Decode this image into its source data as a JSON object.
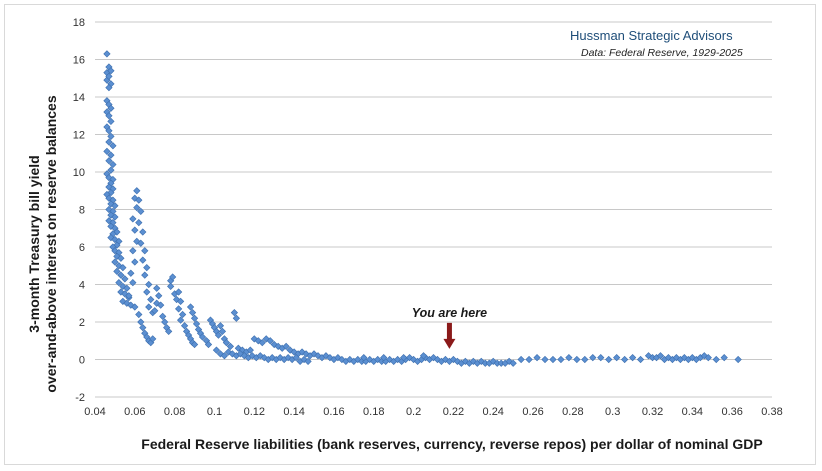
{
  "chart_data": {
    "type": "scatter",
    "title": "",
    "source": {
      "title": "Hussman Strategic Advisors",
      "subtitle": "Data: Federal Reserve, 1929-2025"
    },
    "xlabel": "Federal Reserve liabilities (bank reserves, currency, reverse repos) per dollar of nominal GDP",
    "ylabel_line1": "3-month Treasury bill yield",
    "ylabel_line2": "over-and-above interest on reserve balances",
    "xlim": [
      0.04,
      0.38
    ],
    "ylim": [
      -2,
      18
    ],
    "x_ticks": [
      "0.04",
      "0.06",
      "0.08",
      "0.1",
      "0.12",
      "0.14",
      "0.16",
      "0.18",
      "0.2",
      "0.22",
      "0.24",
      "0.26",
      "0.28",
      "0.3",
      "0.32",
      "0.34",
      "0.36",
      "0.38"
    ],
    "y_ticks": [
      "-2",
      "0",
      "2",
      "4",
      "6",
      "8",
      "10",
      "12",
      "14",
      "16",
      "18"
    ],
    "grid": "horizontal",
    "marker_color": "#5b8fd1",
    "annotation": {
      "text": "You are here",
      "x": 0.218,
      "y": 0.3,
      "arrow_color": "#8b1a1a"
    },
    "points": [
      [
        0.046,
        16.3
      ],
      [
        0.047,
        15.6
      ],
      [
        0.046,
        15.3
      ],
      [
        0.048,
        15.4
      ],
      [
        0.046,
        14.9
      ],
      [
        0.047,
        15.1
      ],
      [
        0.048,
        14.7
      ],
      [
        0.047,
        14.5
      ],
      [
        0.046,
        13.8
      ],
      [
        0.047,
        13.6
      ],
      [
        0.048,
        13.4
      ],
      [
        0.046,
        13.2
      ],
      [
        0.047,
        13.0
      ],
      [
        0.048,
        12.7
      ],
      [
        0.046,
        12.4
      ],
      [
        0.047,
        12.2
      ],
      [
        0.048,
        11.9
      ],
      [
        0.047,
        11.6
      ],
      [
        0.049,
        11.4
      ],
      [
        0.046,
        11.1
      ],
      [
        0.048,
        10.9
      ],
      [
        0.047,
        10.6
      ],
      [
        0.049,
        10.4
      ],
      [
        0.048,
        10.1
      ],
      [
        0.046,
        9.9
      ],
      [
        0.047,
        9.7
      ],
      [
        0.049,
        9.6
      ],
      [
        0.048,
        9.4
      ],
      [
        0.047,
        9.2
      ],
      [
        0.049,
        9.1
      ],
      [
        0.048,
        8.9
      ],
      [
        0.046,
        8.8
      ],
      [
        0.047,
        8.6
      ],
      [
        0.049,
        8.5
      ],
      [
        0.048,
        8.3
      ],
      [
        0.05,
        8.2
      ],
      [
        0.047,
        8.0
      ],
      [
        0.049,
        7.9
      ],
      [
        0.048,
        7.7
      ],
      [
        0.05,
        7.6
      ],
      [
        0.047,
        7.4
      ],
      [
        0.049,
        7.3
      ],
      [
        0.048,
        7.1
      ],
      [
        0.05,
        7.0
      ],
      [
        0.051,
        6.8
      ],
      [
        0.049,
        6.7
      ],
      [
        0.048,
        6.5
      ],
      [
        0.05,
        6.4
      ],
      [
        0.052,
        6.3
      ],
      [
        0.051,
        6.1
      ],
      [
        0.049,
        6.0
      ],
      [
        0.05,
        5.8
      ],
      [
        0.052,
        5.7
      ],
      [
        0.051,
        5.5
      ],
      [
        0.053,
        5.4
      ],
      [
        0.05,
        5.2
      ],
      [
        0.052,
        5.0
      ],
      [
        0.054,
        4.9
      ],
      [
        0.051,
        4.7
      ],
      [
        0.053,
        4.5
      ],
      [
        0.055,
        4.3
      ],
      [
        0.052,
        4.1
      ],
      [
        0.054,
        3.9
      ],
      [
        0.056,
        3.8
      ],
      [
        0.053,
        3.6
      ],
      [
        0.055,
        3.5
      ],
      [
        0.057,
        3.3
      ],
      [
        0.054,
        3.1
      ],
      [
        0.056,
        3.0
      ],
      [
        0.058,
        2.9
      ],
      [
        0.06,
        2.8
      ],
      [
        0.057,
        3.4
      ],
      [
        0.059,
        4.1
      ],
      [
        0.058,
        4.6
      ],
      [
        0.06,
        5.2
      ],
      [
        0.059,
        5.8
      ],
      [
        0.061,
        6.3
      ],
      [
        0.06,
        6.9
      ],
      [
        0.059,
        7.5
      ],
      [
        0.061,
        8.1
      ],
      [
        0.06,
        8.6
      ],
      [
        0.061,
        9.0
      ],
      [
        0.062,
        8.5
      ],
      [
        0.063,
        7.9
      ],
      [
        0.062,
        7.3
      ],
      [
        0.064,
        6.8
      ],
      [
        0.063,
        6.2
      ],
      [
        0.065,
        5.8
      ],
      [
        0.064,
        5.3
      ],
      [
        0.066,
        4.9
      ],
      [
        0.065,
        4.5
      ],
      [
        0.067,
        4.0
      ],
      [
        0.066,
        3.6
      ],
      [
        0.068,
        3.2
      ],
      [
        0.067,
        2.8
      ],
      [
        0.069,
        2.5
      ],
      [
        0.062,
        2.4
      ],
      [
        0.063,
        2.0
      ],
      [
        0.064,
        1.7
      ],
      [
        0.065,
        1.4
      ],
      [
        0.066,
        1.2
      ],
      [
        0.067,
        1.0
      ],
      [
        0.068,
        0.9
      ],
      [
        0.069,
        1.1
      ],
      [
        0.07,
        2.6
      ],
      [
        0.071,
        3.0
      ],
      [
        0.072,
        3.4
      ],
      [
        0.071,
        3.8
      ],
      [
        0.073,
        2.9
      ],
      [
        0.074,
        2.3
      ],
      [
        0.075,
        2.0
      ],
      [
        0.076,
        1.7
      ],
      [
        0.077,
        1.5
      ],
      [
        0.078,
        4.2
      ],
      [
        0.079,
        4.4
      ],
      [
        0.078,
        3.9
      ],
      [
        0.08,
        3.5
      ],
      [
        0.081,
        3.2
      ],
      [
        0.082,
        3.6
      ],
      [
        0.083,
        3.1
      ],
      [
        0.082,
        2.7
      ],
      [
        0.084,
        2.4
      ],
      [
        0.083,
        2.1
      ],
      [
        0.085,
        1.8
      ],
      [
        0.086,
        1.5
      ],
      [
        0.087,
        1.3
      ],
      [
        0.088,
        1.1
      ],
      [
        0.089,
        0.9
      ],
      [
        0.09,
        0.8
      ],
      [
        0.088,
        2.8
      ],
      [
        0.089,
        2.5
      ],
      [
        0.09,
        2.2
      ],
      [
        0.091,
        1.9
      ],
      [
        0.092,
        1.6
      ],
      [
        0.093,
        1.4
      ],
      [
        0.094,
        1.2
      ],
      [
        0.096,
        1.0
      ],
      [
        0.097,
        0.8
      ],
      [
        0.098,
        2.1
      ],
      [
        0.099,
        1.9
      ],
      [
        0.1,
        1.7
      ],
      [
        0.101,
        1.5
      ],
      [
        0.102,
        1.3
      ],
      [
        0.103,
        1.8
      ],
      [
        0.104,
        1.5
      ],
      [
        0.105,
        1.1
      ],
      [
        0.106,
        0.9
      ],
      [
        0.108,
        0.7
      ],
      [
        0.11,
        2.5
      ],
      [
        0.111,
        2.2
      ],
      [
        0.112,
        0.6
      ],
      [
        0.114,
        0.5
      ],
      [
        0.116,
        0.4
      ],
      [
        0.118,
        0.5
      ],
      [
        0.12,
        1.1
      ],
      [
        0.122,
        1.0
      ],
      [
        0.124,
        0.9
      ],
      [
        0.126,
        1.1
      ],
      [
        0.128,
        1.0
      ],
      [
        0.13,
        0.8
      ],
      [
        0.132,
        0.7
      ],
      [
        0.134,
        0.6
      ],
      [
        0.136,
        0.7
      ],
      [
        0.138,
        0.5
      ],
      [
        0.14,
        0.4
      ],
      [
        0.142,
        0.3
      ],
      [
        0.144,
        0.4
      ],
      [
        0.146,
        0.3
      ],
      [
        0.148,
        0.2
      ],
      [
        0.15,
        0.3
      ],
      [
        0.152,
        0.2
      ],
      [
        0.154,
        0.1
      ],
      [
        0.156,
        0.2
      ],
      [
        0.158,
        0.1
      ],
      [
        0.16,
        0.0
      ],
      [
        0.162,
        0.1
      ],
      [
        0.101,
        0.5
      ],
      [
        0.103,
        0.3
      ],
      [
        0.105,
        0.2
      ],
      [
        0.107,
        0.4
      ],
      [
        0.109,
        0.3
      ],
      [
        0.111,
        0.2
      ],
      [
        0.113,
        0.3
      ],
      [
        0.115,
        0.2
      ],
      [
        0.117,
        0.1
      ],
      [
        0.119,
        0.2
      ],
      [
        0.121,
        0.1
      ],
      [
        0.123,
        0.2
      ],
      [
        0.125,
        0.1
      ],
      [
        0.127,
        0.0
      ],
      [
        0.129,
        0.1
      ],
      [
        0.131,
        0.0
      ],
      [
        0.133,
        0.1
      ],
      [
        0.135,
        0.0
      ],
      [
        0.137,
        0.1
      ],
      [
        0.139,
        0.0
      ],
      [
        0.141,
        0.1
      ],
      [
        0.143,
        -0.1
      ],
      [
        0.145,
        0.0
      ],
      [
        0.147,
        -0.1
      ],
      [
        0.164,
        0.0
      ],
      [
        0.166,
        -0.1
      ],
      [
        0.168,
        0.0
      ],
      [
        0.17,
        -0.1
      ],
      [
        0.172,
        0.0
      ],
      [
        0.174,
        -0.1
      ],
      [
        0.176,
        -0.1
      ],
      [
        0.178,
        0.0
      ],
      [
        0.18,
        -0.1
      ],
      [
        0.182,
        0.0
      ],
      [
        0.184,
        -0.1
      ],
      [
        0.186,
        -0.1
      ],
      [
        0.188,
        0.0
      ],
      [
        0.19,
        -0.1
      ],
      [
        0.192,
        0.0
      ],
      [
        0.194,
        -0.1
      ],
      [
        0.196,
        0.0
      ],
      [
        0.198,
        0.1
      ],
      [
        0.2,
        0.0
      ],
      [
        0.202,
        -0.1
      ],
      [
        0.204,
        0.0
      ],
      [
        0.206,
        0.1
      ],
      [
        0.208,
        0.0
      ],
      [
        0.21,
        0.1
      ],
      [
        0.212,
        0.0
      ],
      [
        0.214,
        -0.1
      ],
      [
        0.216,
        0.0
      ],
      [
        0.218,
        -0.1
      ],
      [
        0.22,
        0.0
      ],
      [
        0.222,
        -0.1
      ],
      [
        0.224,
        -0.2
      ],
      [
        0.226,
        -0.1
      ],
      [
        0.228,
        -0.2
      ],
      [
        0.23,
        -0.1
      ],
      [
        0.232,
        -0.2
      ],
      [
        0.234,
        -0.1
      ],
      [
        0.236,
        -0.2
      ],
      [
        0.238,
        -0.2
      ],
      [
        0.24,
        -0.1
      ],
      [
        0.242,
        -0.2
      ],
      [
        0.244,
        -0.2
      ],
      [
        0.246,
        -0.2
      ],
      [
        0.248,
        -0.1
      ],
      [
        0.25,
        -0.2
      ],
      [
        0.205,
        0.2
      ],
      [
        0.195,
        0.1
      ],
      [
        0.185,
        0.1
      ],
      [
        0.175,
        0.1
      ],
      [
        0.254,
        0.0
      ],
      [
        0.258,
        0.0
      ],
      [
        0.262,
        0.1
      ],
      [
        0.266,
        0.0
      ],
      [
        0.27,
        0.0
      ],
      [
        0.274,
        0.0
      ],
      [
        0.278,
        0.1
      ],
      [
        0.282,
        0.0
      ],
      [
        0.286,
        0.0
      ],
      [
        0.29,
        0.1
      ],
      [
        0.294,
        0.1
      ],
      [
        0.298,
        0.0
      ],
      [
        0.302,
        0.1
      ],
      [
        0.306,
        0.0
      ],
      [
        0.31,
        0.1
      ],
      [
        0.314,
        0.0
      ],
      [
        0.318,
        0.2
      ],
      [
        0.32,
        0.1
      ],
      [
        0.322,
        0.1
      ],
      [
        0.324,
        0.2
      ],
      [
        0.326,
        0.0
      ],
      [
        0.328,
        0.1
      ],
      [
        0.33,
        0.0
      ],
      [
        0.332,
        0.1
      ],
      [
        0.334,
        0.0
      ],
      [
        0.336,
        0.1
      ],
      [
        0.338,
        0.0
      ],
      [
        0.34,
        0.1
      ],
      [
        0.342,
        0.0
      ],
      [
        0.344,
        0.1
      ],
      [
        0.346,
        0.2
      ],
      [
        0.348,
        0.1
      ],
      [
        0.352,
        0.0
      ],
      [
        0.356,
        0.1
      ],
      [
        0.363,
        0.0
      ]
    ]
  }
}
